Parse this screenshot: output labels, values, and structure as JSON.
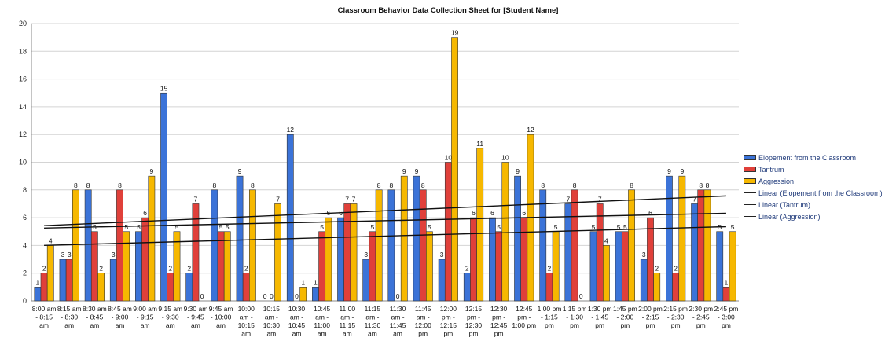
{
  "chart_data": {
    "type": "bar",
    "title": "Classroom Behavior Data Collection Sheet for [Student Name]",
    "ylim": [
      0,
      20
    ],
    "yticks": [
      0,
      2,
      4,
      6,
      8,
      10,
      12,
      14,
      16,
      18,
      20
    ],
    "categories": [
      "8:00 am - 8:15 am",
      "8:15 am - 8:30 am",
      "8:30 am - 8:45 am",
      "8:45 am - 9:00 am",
      "9:00 am - 9:15 am",
      "9:15 am - 9:30 am",
      "9:30 am - 9:45 am",
      "9:45 am - 10:00 am",
      "10:00 am - 10:15 am",
      "10:15 am - 10:30 am",
      "10:30 am - 10:45 am",
      "10:45 am - 11:00 am",
      "11:00 am - 11:15 am",
      "11:15 am - 11:30 am",
      "11:30 am - 11:45 am",
      "11:45 am - 12:00 pm",
      "12:00 pm - 12:15 pm",
      "12:15 pm - 12:30 pm",
      "12:30 pm - 12:45 pm",
      "12:45 pm - 1:00 pm",
      "1:00 pm - 1:15 pm",
      "1:15 pm - 1:30 pm",
      "1:30 pm - 1:45 pm",
      "1:45 pm - 2:00 pm",
      "2:00 pm - 2:15 pm",
      "2:15 pm - 2:30 pm",
      "2:30 pm - 2:45 pm",
      "2:45 pm - 3:00 pm"
    ],
    "tick_lines": [
      [
        "8:00 am",
        "- 8:15",
        "am"
      ],
      [
        "8:15 am",
        "- 8:30",
        "am"
      ],
      [
        "8:30 am",
        "- 8:45",
        "am"
      ],
      [
        "8:45 am",
        "- 9:00",
        "am"
      ],
      [
        "9:00 am",
        "- 9:15",
        "am"
      ],
      [
        "9:15 am",
        "- 9:30",
        "am"
      ],
      [
        "9:30 am",
        "- 9:45",
        "am"
      ],
      [
        "9:45 am",
        "- 10:00",
        "am"
      ],
      [
        "10:00",
        "am -",
        "10:15",
        "am"
      ],
      [
        "10:15",
        "am -",
        "10:30",
        "am"
      ],
      [
        "10:30",
        "am -",
        "10:45",
        "am"
      ],
      [
        "10:45",
        "am -",
        "11:00",
        "am"
      ],
      [
        "11:00",
        "am -",
        "11:15",
        "am"
      ],
      [
        "11:15",
        "am -",
        "11:30",
        "am"
      ],
      [
        "11:30",
        "am -",
        "11:45",
        "am"
      ],
      [
        "11:45",
        "am -",
        "12:00",
        "pm"
      ],
      [
        "12:00",
        "pm -",
        "12:15",
        "pm"
      ],
      [
        "12:15",
        "pm -",
        "12:30",
        "pm"
      ],
      [
        "12:30",
        "pm -",
        "12:45",
        "pm"
      ],
      [
        "12:45",
        "pm -",
        "1:00 pm"
      ],
      [
        "1:00 pm",
        "- 1:15",
        "pm"
      ],
      [
        "1:15 pm",
        "- 1:30",
        "pm"
      ],
      [
        "1:30 pm",
        "- 1:45",
        "pm"
      ],
      [
        "1:45 pm",
        "- 2:00",
        "pm"
      ],
      [
        "2:00 pm",
        "- 2:15",
        "pm"
      ],
      [
        "2:15 pm",
        "- 2:30",
        "pm"
      ],
      [
        "2:30 pm",
        "- 2:45",
        "pm"
      ],
      [
        "2:45 pm",
        "- 3:00",
        "pm"
      ]
    ],
    "series": [
      {
        "name": "Elopement from the Classroom",
        "color": "#3b73d8",
        "values": [
          1,
          3,
          8,
          3,
          5,
          15,
          2,
          8,
          9,
          0,
          12,
          1,
          6,
          3,
          8,
          9,
          3,
          2,
          6,
          9,
          8,
          7,
          5,
          5,
          3,
          9,
          7,
          5
        ]
      },
      {
        "name": "Tantrum",
        "color": "#e0403a",
        "values": [
          2,
          3,
          5,
          8,
          6,
          2,
          7,
          5,
          2,
          0,
          0,
          5,
          7,
          5,
          0,
          8,
          10,
          6,
          5,
          6,
          2,
          8,
          7,
          5,
          6,
          2,
          8,
          1
        ]
      },
      {
        "name": "Aggression",
        "color": "#f6b800",
        "values": [
          4,
          8,
          2,
          5,
          9,
          5,
          0,
          5,
          8,
          7,
          1,
          6,
          7,
          8,
          9,
          5,
          19,
          11,
          10,
          12,
          5,
          0,
          4,
          8,
          2,
          9,
          8,
          5
        ]
      }
    ],
    "trendlines": [
      {
        "name": "Linear (Elopement from the Classroom)",
        "color": "#111111"
      },
      {
        "name": "Linear (Tantrum)",
        "color": "#111111"
      },
      {
        "name": "Linear (Aggression)",
        "color": "#111111"
      }
    ],
    "legend_position": "right",
    "grid": true
  }
}
